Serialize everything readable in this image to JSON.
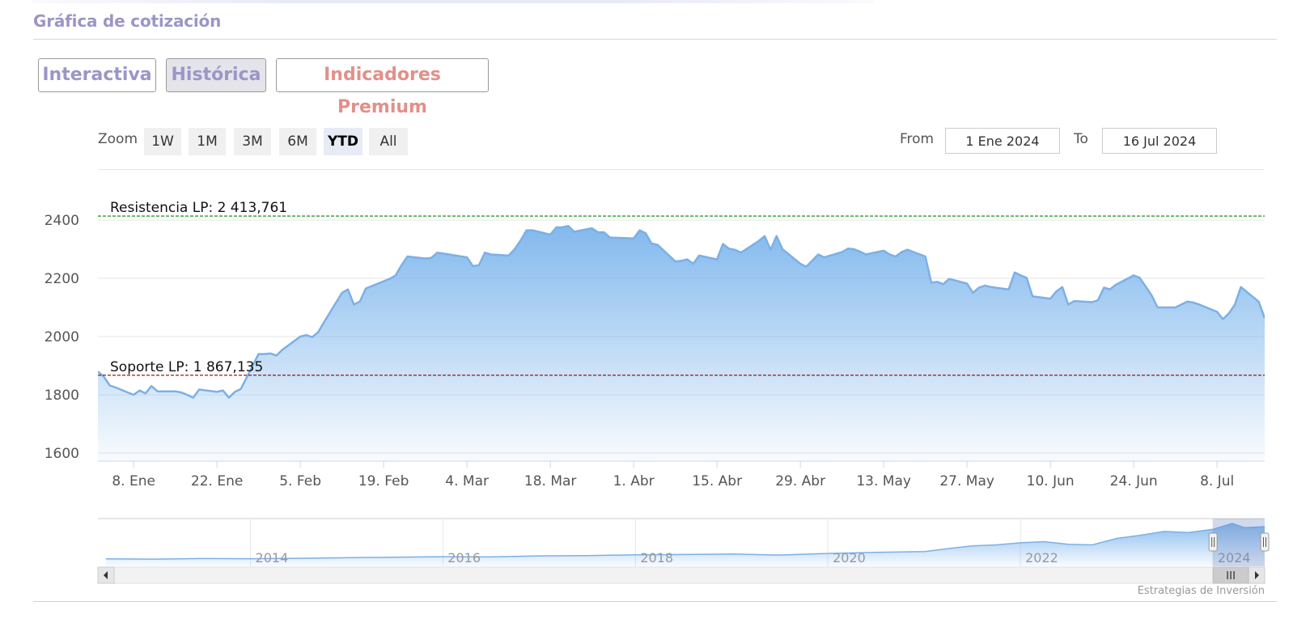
{
  "section": {
    "title": "Gráfica de cotización"
  },
  "tabs": [
    {
      "label": "Interactiva",
      "active": false
    },
    {
      "label": "Histórica",
      "active": true
    },
    {
      "label": "Indicadores Premium",
      "active": false
    }
  ],
  "zoom": {
    "label": "Zoom",
    "buttons": [
      "1W",
      "1M",
      "3M",
      "6M",
      "YTD",
      "All"
    ],
    "selected": "YTD"
  },
  "range": {
    "from_label": "From",
    "from_value": "1 Ene 2024",
    "to_label": "To",
    "to_value": "16 Jul 2024"
  },
  "credit": "Estrategias de Inversión",
  "colors": {
    "line": "#7cb0e6",
    "area_top": "#7cb5ec",
    "resistance": "#008000",
    "support": "#8b0000",
    "tab_text": "#9b96c6",
    "premium_text": "#e2908a"
  },
  "chart_data": {
    "type": "area",
    "ylim": [
      1600,
      2400
    ],
    "yticks": [
      "1600",
      "1800",
      "2000",
      "2200",
      "2400"
    ],
    "x_ticks": [
      {
        "label": "8. Ene",
        "date": "2024-01-08"
      },
      {
        "label": "22. Ene",
        "date": "2024-01-22"
      },
      {
        "label": "5. Feb",
        "date": "2024-02-05"
      },
      {
        "label": "19. Feb",
        "date": "2024-02-19"
      },
      {
        "label": "4. Mar",
        "date": "2024-03-04"
      },
      {
        "label": "18. Mar",
        "date": "2024-03-18"
      },
      {
        "label": "1. Abr",
        "date": "2024-04-01"
      },
      {
        "label": "15. Abr",
        "date": "2024-04-15"
      },
      {
        "label": "29. Abr",
        "date": "2024-04-29"
      },
      {
        "label": "13. May",
        "date": "2024-05-13"
      },
      {
        "label": "27. May",
        "date": "2024-05-27"
      },
      {
        "label": "10. Jun",
        "date": "2024-06-10"
      },
      {
        "label": "24. Jun",
        "date": "2024-06-24"
      },
      {
        "label": "8. Jul",
        "date": "2024-07-08"
      }
    ],
    "x_range": [
      "2024-01-02",
      "2024-07-16"
    ],
    "series": [
      {
        "x": [
          "2024-01-02",
          "2024-01-03",
          "2024-01-04",
          "2024-01-05",
          "2024-01-08",
          "2024-01-09",
          "2024-01-10",
          "2024-01-11",
          "2024-01-12",
          "2024-01-15",
          "2024-01-16",
          "2024-01-17",
          "2024-01-18",
          "2024-01-19",
          "2024-01-22",
          "2024-01-23",
          "2024-01-24",
          "2024-01-25",
          "2024-01-26",
          "2024-01-29",
          "2024-01-30",
          "2024-01-31",
          "2024-02-01",
          "2024-02-02",
          "2024-02-05",
          "2024-02-06",
          "2024-02-07",
          "2024-02-08",
          "2024-02-09",
          "2024-02-12",
          "2024-02-13",
          "2024-02-14",
          "2024-02-15",
          "2024-02-16",
          "2024-02-19",
          "2024-02-20",
          "2024-02-21",
          "2024-02-22",
          "2024-02-23",
          "2024-02-26",
          "2024-02-27",
          "2024-02-28",
          "2024-02-29",
          "2024-03-01",
          "2024-03-04",
          "2024-03-05",
          "2024-03-06",
          "2024-03-07",
          "2024-03-08",
          "2024-03-11",
          "2024-03-12",
          "2024-03-13",
          "2024-03-14",
          "2024-03-15",
          "2024-03-18",
          "2024-03-19",
          "2024-03-20",
          "2024-03-21",
          "2024-03-22",
          "2024-03-25",
          "2024-03-26",
          "2024-03-27",
          "2024-03-28",
          "2024-04-01",
          "2024-04-02",
          "2024-04-03",
          "2024-04-04",
          "2024-04-05",
          "2024-04-08",
          "2024-04-09",
          "2024-04-10",
          "2024-04-11",
          "2024-04-12",
          "2024-04-15",
          "2024-04-16",
          "2024-04-17",
          "2024-04-18",
          "2024-04-19",
          "2024-04-22",
          "2024-04-23",
          "2024-04-24",
          "2024-04-25",
          "2024-04-26",
          "2024-04-29",
          "2024-04-30",
          "2024-05-02",
          "2024-05-03",
          "2024-05-06",
          "2024-05-07",
          "2024-05-08",
          "2024-05-09",
          "2024-05-10",
          "2024-05-13",
          "2024-05-14",
          "2024-05-15",
          "2024-05-16",
          "2024-05-17",
          "2024-05-20",
          "2024-05-21",
          "2024-05-22",
          "2024-05-23",
          "2024-05-24",
          "2024-05-27",
          "2024-05-28",
          "2024-05-29",
          "2024-05-30",
          "2024-05-31",
          "2024-06-03",
          "2024-06-04",
          "2024-06-05",
          "2024-06-06",
          "2024-06-07",
          "2024-06-10",
          "2024-06-11",
          "2024-06-12",
          "2024-06-13",
          "2024-06-14",
          "2024-06-17",
          "2024-06-18",
          "2024-06-19",
          "2024-06-20",
          "2024-06-21",
          "2024-06-24",
          "2024-06-25",
          "2024-06-26",
          "2024-06-27",
          "2024-06-28",
          "2024-07-01",
          "2024-07-02",
          "2024-07-03",
          "2024-07-04",
          "2024-07-05",
          "2024-07-08",
          "2024-07-09",
          "2024-07-10",
          "2024-07-11",
          "2024-07-12",
          "2024-07-15",
          "2024-07-16"
        ],
        "values": [
          1880,
          1862,
          1832,
          1825,
          1800,
          1815,
          1805,
          1830,
          1812,
          1812,
          1808,
          1800,
          1790,
          1818,
          1810,
          1815,
          1790,
          1810,
          1820,
          1940,
          1940,
          1942,
          1935,
          1955,
          2000,
          2005,
          1998,
          2015,
          2050,
          2150,
          2162,
          2110,
          2120,
          2165,
          2190,
          2198,
          2210,
          2245,
          2275,
          2268,
          2270,
          2288,
          2285,
          2282,
          2272,
          2242,
          2245,
          2288,
          2282,
          2278,
          2300,
          2330,
          2365,
          2365,
          2350,
          2375,
          2375,
          2380,
          2360,
          2372,
          2358,
          2358,
          2340,
          2337,
          2365,
          2355,
          2320,
          2315,
          2258,
          2260,
          2265,
          2250,
          2278,
          2265,
          2318,
          2302,
          2298,
          2288,
          2328,
          2345,
          2298,
          2345,
          2300,
          2250,
          2240,
          2282,
          2272,
          2290,
          2302,
          2300,
          2292,
          2282,
          2295,
          2282,
          2275,
          2290,
          2298,
          2275,
          2185,
          2188,
          2180,
          2198,
          2182,
          2150,
          2168,
          2175,
          2170,
          2162,
          2220,
          2210,
          2202,
          2138,
          2130,
          2155,
          2170,
          2110,
          2122,
          2118,
          2125,
          2168,
          2162,
          2178,
          2210,
          2202,
          2172,
          2142,
          2100,
          2100,
          2110,
          2120,
          2117,
          2110,
          2085,
          2060,
          2080,
          2110,
          2170,
          2120,
          2063
        ]
      }
    ],
    "plot_lines": [
      {
        "label": "Resistencia LP: 2 413,761",
        "value": 2413.761,
        "color": "#008000"
      },
      {
        "label": "Soporte LP: 1 867,135",
        "value": 1867.135,
        "color": "#8b0000"
      }
    ],
    "navigator": {
      "x_labels": [
        "2014",
        "2016",
        "2018",
        "2020",
        "2022",
        "2024"
      ],
      "x_range": [
        "2012-06-01",
        "2024-07-16"
      ],
      "series": [
        {
          "x": [
            "2012-07-01",
            "2013-01-01",
            "2013-07-01",
            "2014-01-01",
            "2014-07-01",
            "2015-01-01",
            "2015-07-01",
            "2016-01-01",
            "2016-07-01",
            "2017-01-01",
            "2017-07-01",
            "2018-01-01",
            "2018-07-01",
            "2019-01-01",
            "2019-07-01",
            "2020-01-01",
            "2020-07-01",
            "2021-01-01",
            "2021-04-01",
            "2021-07-01",
            "2021-10-01",
            "2022-01-01",
            "2022-04-01",
            "2022-07-01",
            "2022-10-01",
            "2023-01-01",
            "2023-04-01",
            "2023-07-01",
            "2023-10-01",
            "2024-01-01",
            "2024-03-15",
            "2024-05-01",
            "2024-07-16"
          ],
          "values": [
            140,
            135,
            145,
            142,
            150,
            160,
            170,
            180,
            175,
            195,
            200,
            215,
            220,
            230,
            210,
            240,
            260,
            275,
            330,
            380,
            400,
            440,
            460,
            410,
            400,
            520,
            580,
            650,
            630,
            690,
            800,
            720,
            740
          ]
        }
      ],
      "selected_range": [
        "2024-01-02",
        "2024-07-16"
      ]
    }
  }
}
